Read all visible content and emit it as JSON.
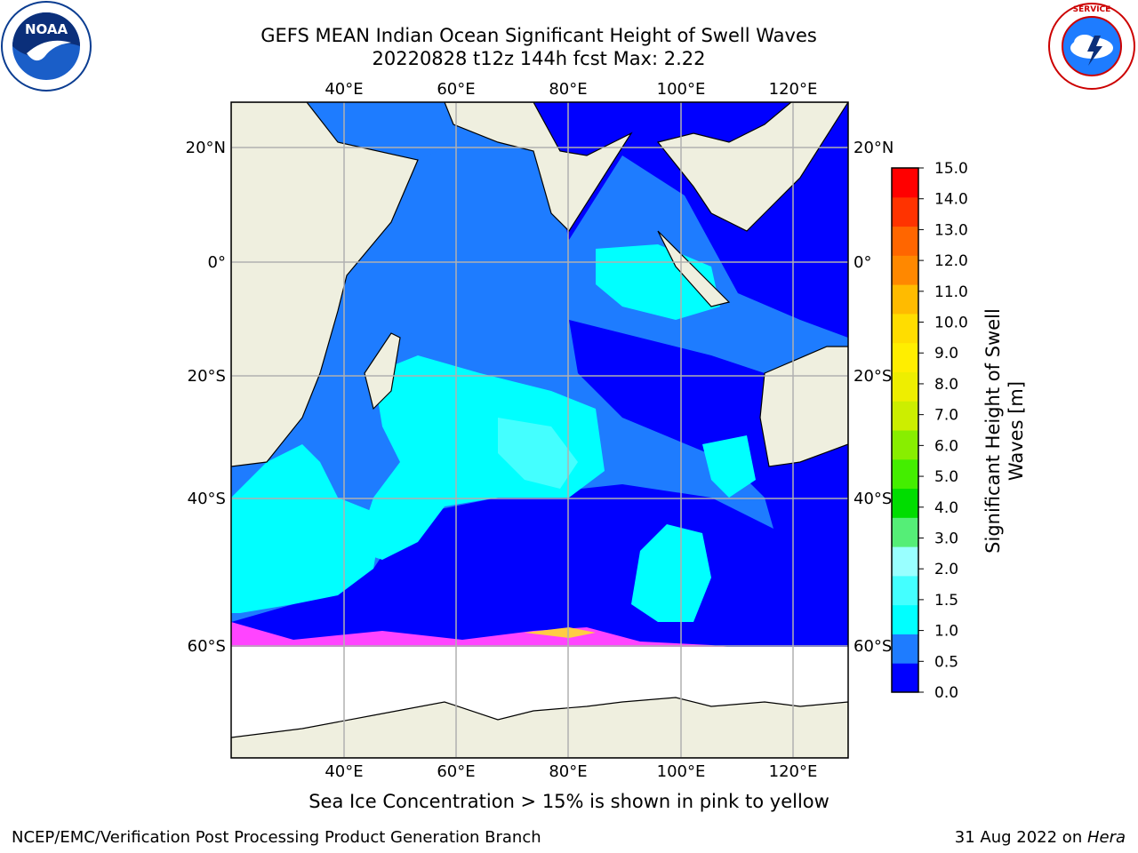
{
  "header": {
    "title_line1": "GEFS MEAN Indian Ocean Significant Height of Swell Waves",
    "title_line2": "20220828 t12z 144h fcst   Max: 2.22"
  },
  "map": {
    "lon_ticks": [
      "40°E",
      "60°E",
      "80°E",
      "100°E",
      "120°E"
    ],
    "lon_values": [
      40,
      60,
      80,
      100,
      120
    ],
    "lat_ticks_left": [
      "20°N",
      "0°",
      "20°S",
      "40°S",
      "60°S"
    ],
    "lat_ticks_right": [
      "20°N",
      "0°",
      "20°S",
      "40°S",
      "60°S"
    ],
    "lat_values": [
      20,
      0,
      -20,
      -40,
      -60
    ],
    "extent": {
      "lon_min": 20,
      "lon_max": 130,
      "lat_min": -75,
      "lat_max": 27
    },
    "colors": {
      "land": "#efefdf",
      "ocean_0_05": "#0000ff",
      "ocean_05_1": "#1e7cff",
      "ocean_1_15": "#00ffff",
      "ocean_15_2": "#44ffff",
      "ice": "#ffffff",
      "ice_edge_pink": "#ff44ff",
      "ice_edge_yellow": "#ffcc44"
    }
  },
  "colorbar": {
    "ticks": [
      "15.0",
      "14.0",
      "13.0",
      "12.0",
      "11.0",
      "10.0",
      "9.0",
      "8.0",
      "7.0",
      "6.0",
      "5.0",
      "4.0",
      "3.0",
      "2.0",
      "1.5",
      "1.0",
      "0.5",
      "0.0"
    ],
    "colors": [
      "#0000ff",
      "#1e7cff",
      "#00ffff",
      "#44ffff",
      "#99ffff",
      "#55ee77",
      "#00dd00",
      "#44ee00",
      "#88ee00",
      "#ccee00",
      "#eeee00",
      "#ffee00",
      "#ffdd00",
      "#ffbb00",
      "#ff8800",
      "#ff6600",
      "#ff3300",
      "#ff0000"
    ],
    "label_line1": "Significant Height of Swell",
    "label_line2": "Waves [m]"
  },
  "footer": {
    "note": "Sea Ice Concentration > 15% is shown in pink to yellow",
    "left": "NCEP/EMC/Verification Post Processing Product Generation Branch",
    "right_date": "31 Aug 2022 on ",
    "right_host": "Hera"
  },
  "logos": {
    "noaa": "NOAA",
    "nws": "NATIONAL WEATHER SERVICE"
  }
}
